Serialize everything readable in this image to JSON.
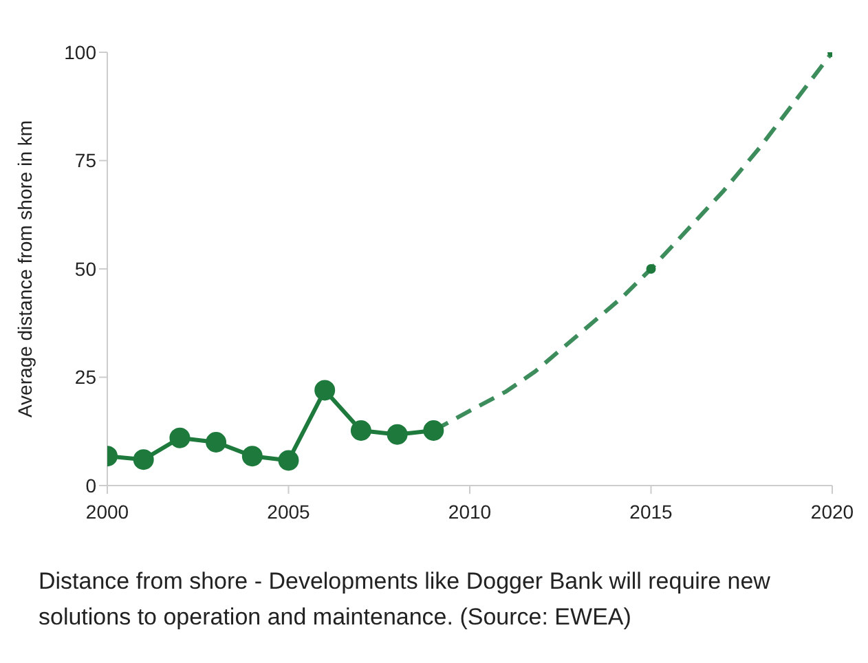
{
  "chart_data": {
    "type": "line",
    "ylabel": "Average distance from shore in km",
    "xlim": [
      2000,
      2020
    ],
    "xticks": [
      2000,
      2005,
      2010,
      2015,
      2020
    ],
    "ylim": [
      0,
      100
    ],
    "yticks": [
      0,
      25,
      50,
      75,
      100
    ],
    "grid": false,
    "legend": false,
    "series": [
      {
        "color": "#1e7a3c",
        "marker": "circle",
        "line_style": "solid",
        "x": [
          2000,
          2001,
          2002,
          2003,
          2004,
          2005,
          2006,
          2007,
          2008,
          2009
        ],
        "values": [
          6.8,
          6,
          11,
          10,
          6.8,
          5.8,
          22,
          12.7,
          11.8,
          12.7
        ]
      },
      {
        "color": "#3d8c5c",
        "marker": "none",
        "line_style": "dashed",
        "x": [
          2009,
          2010.1,
          2011,
          2011.8,
          2012.6,
          2013.4,
          2014.2,
          2015,
          2016,
          2017,
          2018,
          2019,
          2020
        ],
        "values": [
          12.7,
          17.7,
          21.7,
          26.3,
          32,
          37.7,
          43.4,
          50,
          59,
          68,
          78,
          89,
          100
        ]
      },
      {
        "type": "scatter",
        "color": "#1e7a3c",
        "marker": "circle",
        "x": [
          2015,
          2020
        ],
        "values": [
          50,
          100
        ]
      }
    ],
    "annotations": [
      "Distance from shore - Developments like Dogger Bank will require new solutions to operation and maintenance. (Source: EWEA)"
    ]
  }
}
